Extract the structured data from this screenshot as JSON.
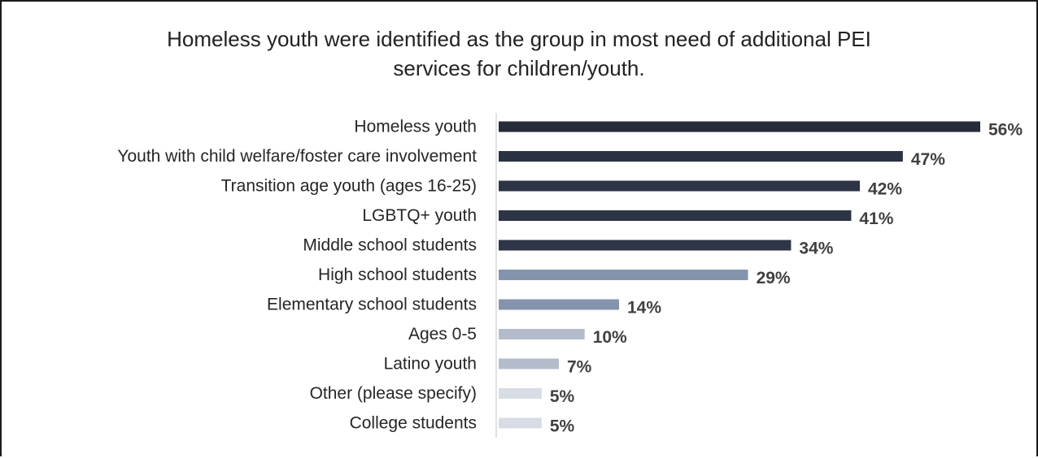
{
  "chart_data": {
    "type": "bar",
    "orientation": "horizontal",
    "title_lines": [
      "Homeless youth were identified as the group in most need of additional PEI",
      "services for children/youth."
    ],
    "categories": [
      "Homeless youth",
      "Youth with child welfare/foster care involvement",
      "Transition age youth (ages 16-25)",
      "LGBTQ+ youth",
      "Middle school students",
      "High school students",
      "Elementary school students",
      "Ages 0-5",
      "Latino youth",
      "Other (please specify)",
      "College students"
    ],
    "values": [
      56,
      47,
      42,
      41,
      34,
      29,
      14,
      10,
      7,
      5,
      5
    ],
    "value_labels": [
      "56%",
      "47%",
      "42%",
      "41%",
      "34%",
      "29%",
      "14%",
      "10%",
      "7%",
      "5%",
      "5%"
    ],
    "bar_colors": [
      "#252b38",
      "#2b3242",
      "#2d3445",
      "#2d3445",
      "#2f3647",
      "#8594ad",
      "#8594ad",
      "#b4bccb",
      "#b4bccb",
      "#d7dce5",
      "#d7dce5"
    ],
    "xlim": [
      0,
      56
    ],
    "legend": false,
    "grid": false
  }
}
